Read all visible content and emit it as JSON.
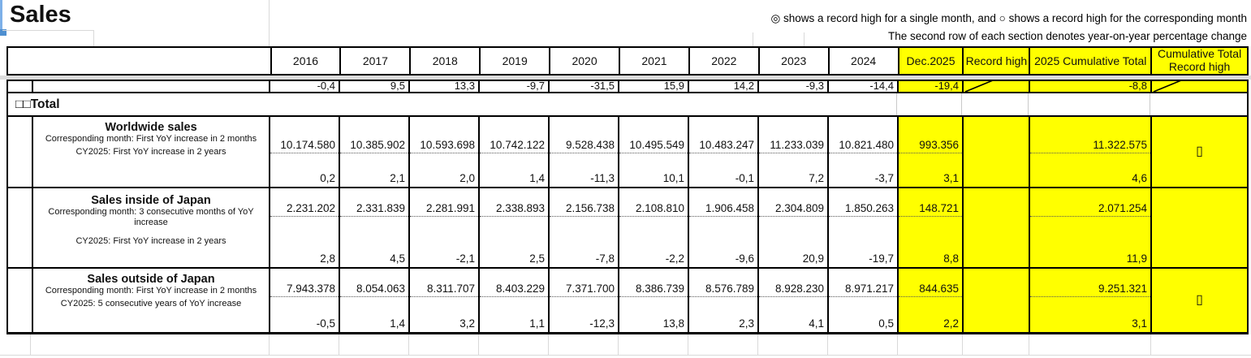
{
  "title": "Sales",
  "notes": {
    "line1": "◎ shows a record high for a single month, and ○ shows a record high for the corresponding month",
    "line2": "The second row of each section denotes year-on-year percentage change"
  },
  "table": {
    "year_columns": [
      "2016",
      "2017",
      "2018",
      "2019",
      "2020",
      "2021",
      "2022",
      "2023",
      "2024"
    ],
    "extra_columns": [
      "Dec.2025",
      "Record high",
      "2025 Cumulative Total",
      "Cumulative Total Record high"
    ],
    "clipped_row": {
      "yoy": [
        "-0,4",
        "9,5",
        "13,3",
        "-9,7",
        "-31,5",
        "15,9",
        "14,2",
        "-9,3",
        "-14,4"
      ],
      "dec_yoy": "-19,4",
      "cum_yoy": "-8,8"
    },
    "section_label": "□□Total",
    "rows": [
      {
        "label": "Worldwide sales",
        "note1": "Corresponding month: First YoY increase in 2 months",
        "note2": "CY2025: First YoY increase in 2 years",
        "values": [
          "10.174.580",
          "10.385.902",
          "10.593.698",
          "10.742.122",
          "9.528.438",
          "10.495.549",
          "10.483.247",
          "11.233.039",
          "10.821.480"
        ],
        "yoy": [
          "0,2",
          "2,1",
          "2,0",
          "1,4",
          "-11,3",
          "10,1",
          "-0,1",
          "7,2",
          "-3,7"
        ],
        "dec_value": "993.356",
        "dec_yoy": "3,1",
        "record_high": "",
        "cum_value": "11.322.575",
        "cum_yoy": "4,6",
        "cum_record": "▯"
      },
      {
        "label": "Sales inside of Japan",
        "note1": "Corresponding month: 3 consecutive months of YoY increase",
        "note2": "CY2025:  First YoY increase in 2 years",
        "values": [
          "2.231.202",
          "2.331.839",
          "2.281.991",
          "2.338.893",
          "2.156.738",
          "2.108.810",
          "1.906.458",
          "2.304.809",
          "1.850.263"
        ],
        "yoy": [
          "2,8",
          "4,5",
          "-2,1",
          "2,5",
          "-7,8",
          "-2,2",
          "-9,6",
          "20,9",
          "-19,7"
        ],
        "dec_value": "148.721",
        "dec_yoy": "8,8",
        "record_high": "",
        "cum_value": "2.071.254",
        "cum_yoy": "11,9",
        "cum_record": ""
      },
      {
        "label": "Sales outside of Japan",
        "note1": "Corresponding month: First YoY increase in 2 months",
        "note2": "CY2025: 5 consecutive years of YoY increase",
        "values": [
          "7.943.378",
          "8.054.063",
          "8.311.707",
          "8.403.229",
          "7.371.700",
          "8.386.739",
          "8.576.789",
          "8.928.230",
          "8.971.217"
        ],
        "yoy": [
          "-0,5",
          "1,4",
          "3,2",
          "1,1",
          "-12,3",
          "13,8",
          "2,3",
          "4,1",
          "0,5"
        ],
        "dec_value": "844.635",
        "dec_yoy": "2,2",
        "record_high": "",
        "cum_value": "9.251.321",
        "cum_yoy": "3,1",
        "cum_record": "▯"
      }
    ]
  },
  "colors": {
    "highlight": "#FFFF00",
    "selection_blue": "#4e8fd0",
    "split_bar": "#dcdcdc"
  }
}
